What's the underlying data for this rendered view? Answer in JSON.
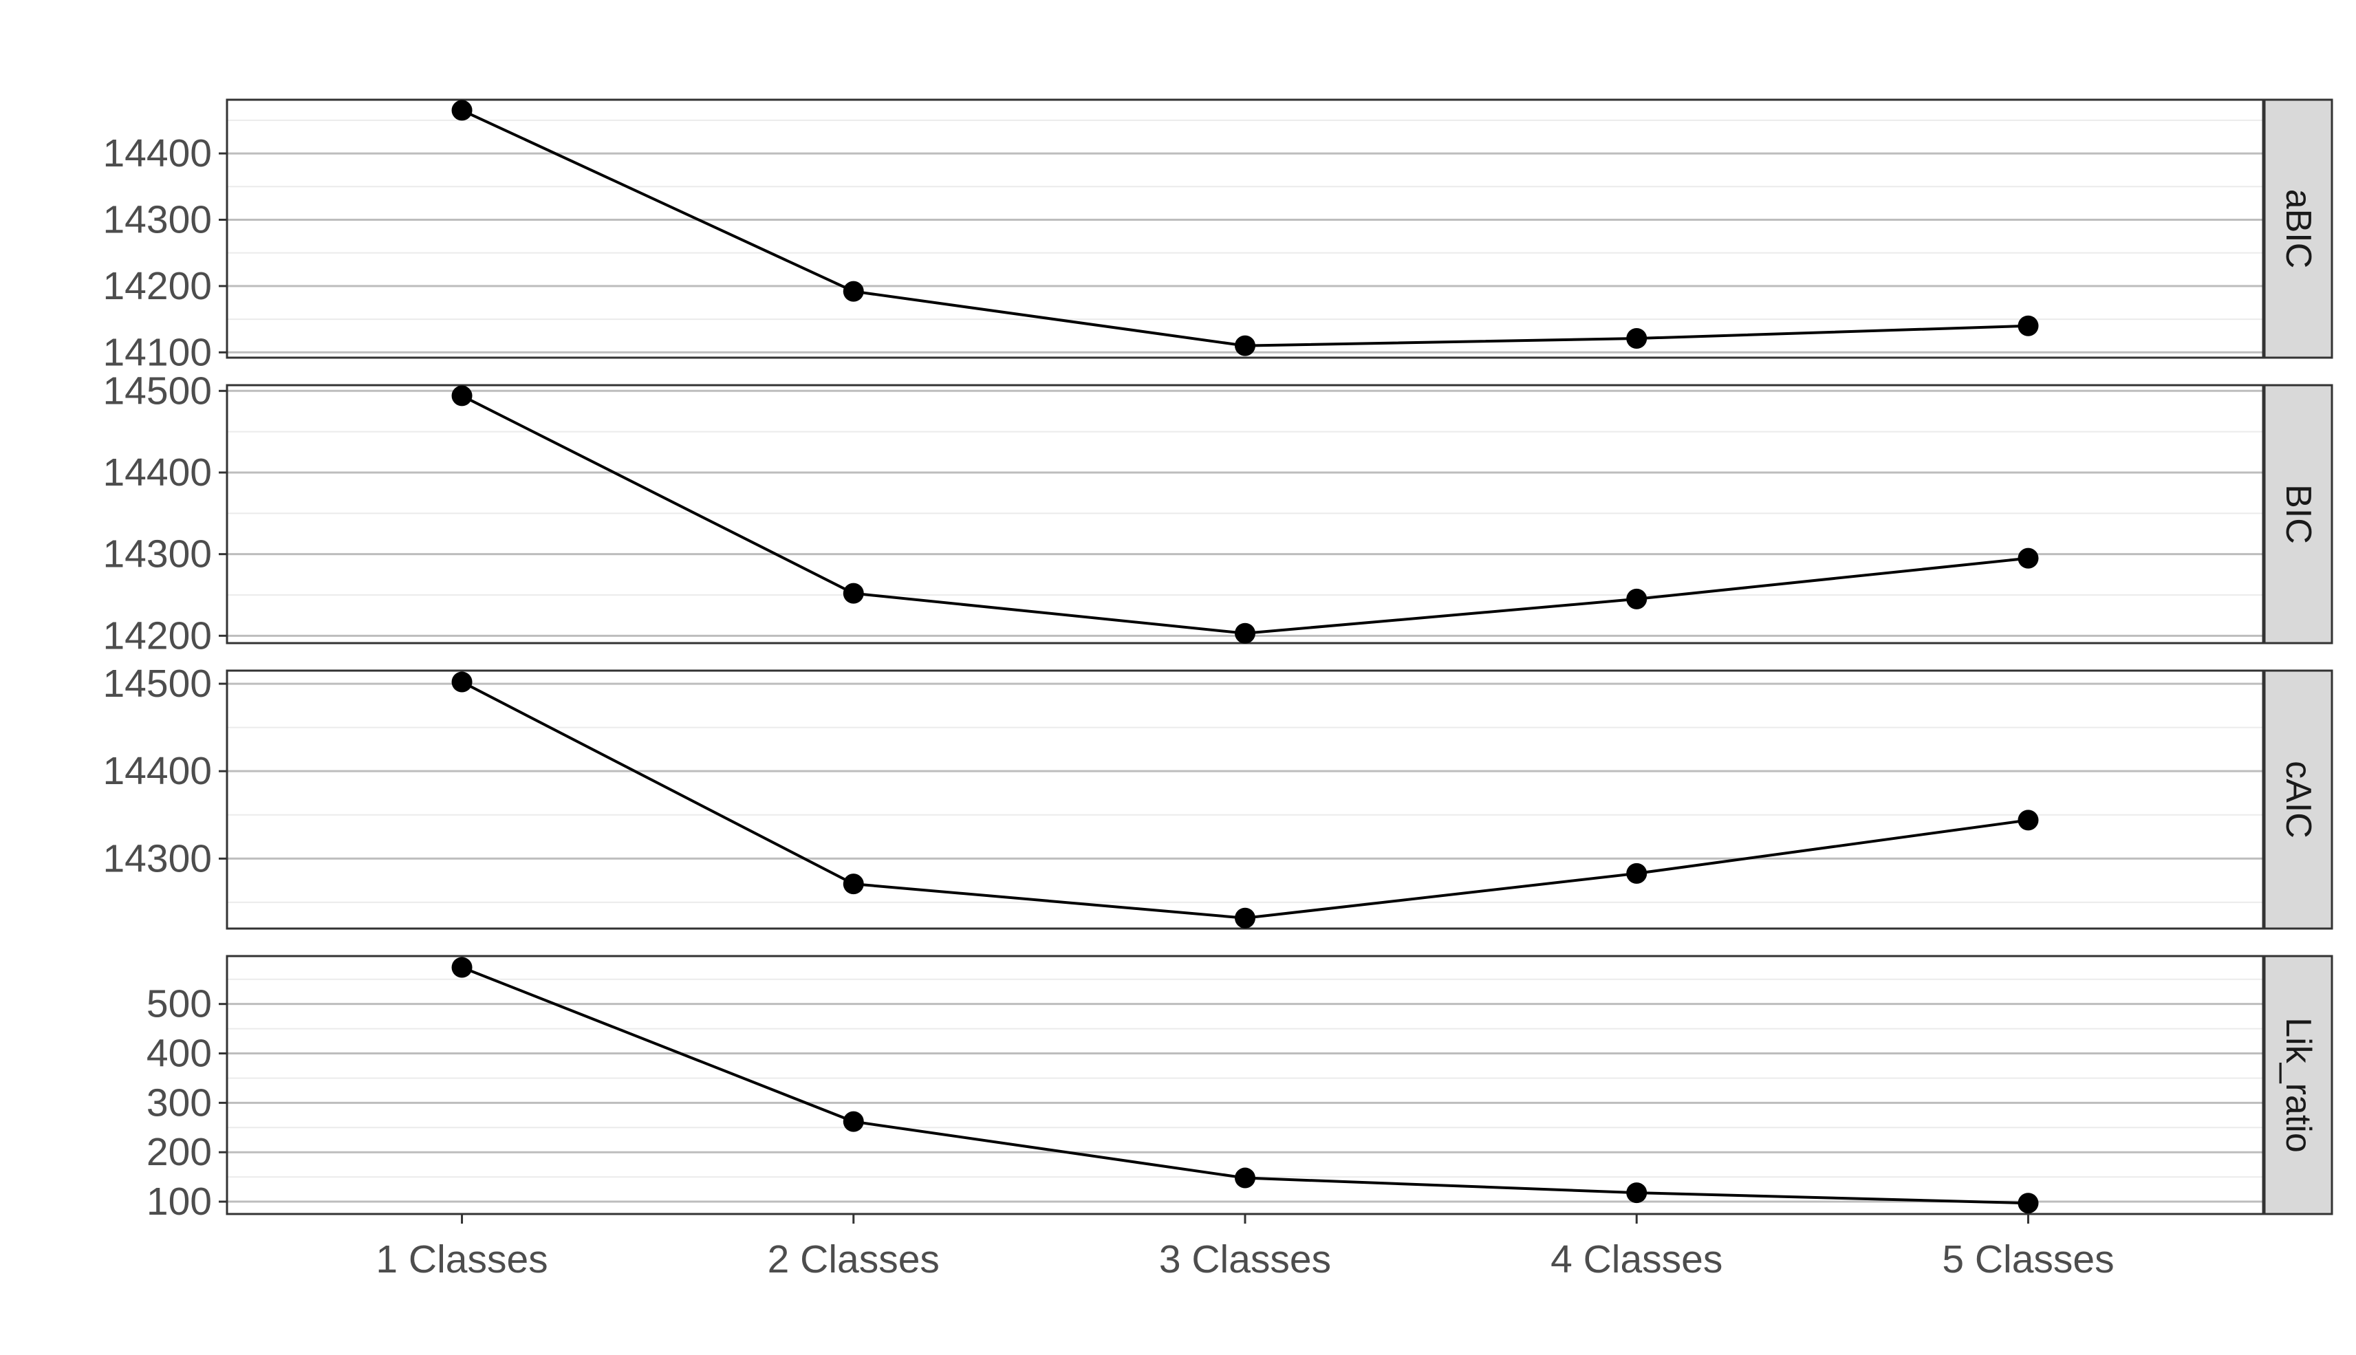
{
  "chart_data": {
    "type": "line",
    "layout": "faceted-vertical",
    "categories": [
      "1 Classes",
      "2 Classes",
      "3 Classes",
      "4 Classes",
      "5 Classes"
    ],
    "title": "",
    "xlabel": "",
    "ylabel": "",
    "grid": true,
    "facets": [
      {
        "label": "aBIC",
        "values": [
          14465,
          14192,
          14110,
          14121,
          14140
        ],
        "ylim": [
          14092,
          14481
        ],
        "yticks": [
          14100,
          14200,
          14300,
          14400
        ]
      },
      {
        "label": "BIC",
        "values": [
          14494,
          14252,
          14203,
          14245,
          14295
        ],
        "ylim": [
          14191,
          14507
        ],
        "yticks": [
          14200,
          14300,
          14400,
          14500
        ]
      },
      {
        "label": "cAIC",
        "values": [
          14502,
          14271,
          14232,
          14283,
          14344
        ],
        "ylim": [
          14220,
          14515
        ],
        "yticks": [
          14300,
          14400,
          14500
        ]
      },
      {
        "label": "Lik_ratio",
        "values": [
          574,
          262,
          148,
          118,
          97
        ],
        "ylim": [
          75,
          597
        ],
        "yticks": [
          100,
          200,
          300,
          400,
          500
        ]
      }
    ]
  }
}
